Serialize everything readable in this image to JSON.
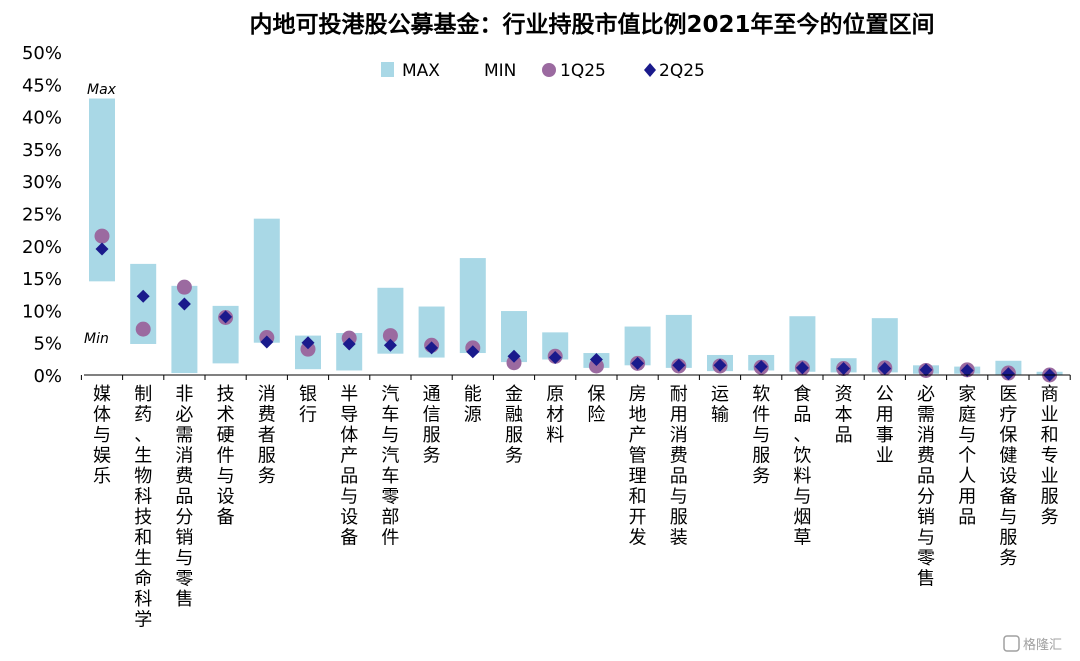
{
  "chart_data": {
    "type": "range-bar with markers",
    "title": "内地可投港股公募基金：行业持股市值比例2021年至今的位置区间",
    "legend": {
      "max": "MAX",
      "min": "MIN",
      "q1": "1Q25",
      "q2": "2Q25"
    },
    "annotations": {
      "max_label": "Max",
      "min_label": "Min"
    },
    "y_ticks": [
      "50%",
      "45%",
      "40%",
      "35%",
      "30%",
      "25%",
      "20%",
      "15%",
      "10%",
      "5%",
      "0%"
    ],
    "ylim": [
      0,
      50
    ],
    "categories": [
      "媒体与娱乐",
      "制药、生物科技和生命科学",
      "非必需消费品分销与零售",
      "技术硬件与设备",
      "消费者服务",
      "银行",
      "半导体产品与设备",
      "汽车与汽车零部件",
      "通信服务",
      "能源",
      "金融服务",
      "原材料",
      "保险",
      "房地产管理和开发",
      "耐用消费品与服装",
      "运输",
      "软件与服务",
      "食品、饮料与烟草",
      "资本品",
      "公用事业",
      "必需消费品分销与零售",
      "家庭与个人用品",
      "医疗保健设备与服务",
      "商业和专业服务"
    ],
    "series": [
      {
        "name": "MAX",
        "values": [
          42.8,
          17.2,
          13.8,
          10.7,
          24.2,
          6.1,
          6.5,
          13.5,
          10.6,
          18.1,
          9.9,
          6.6,
          3.4,
          7.5,
          9.3,
          3.1,
          3.1,
          9.1,
          2.6,
          8.8,
          1.5,
          1.3,
          2.2,
          0.5
        ]
      },
      {
        "name": "MIN",
        "values": [
          14.5,
          4.8,
          0.3,
          1.8,
          5.0,
          0.9,
          0.7,
          3.3,
          2.7,
          3.4,
          2.0,
          2.4,
          1.1,
          1.5,
          1.1,
          0.6,
          0.7,
          0.5,
          0.4,
          0.4,
          0.2,
          0.2,
          0.1,
          0.0
        ]
      },
      {
        "name": "1Q25",
        "values": [
          21.5,
          7.1,
          13.6,
          8.9,
          5.8,
          4.0,
          5.7,
          6.1,
          4.6,
          4.2,
          1.9,
          2.9,
          1.4,
          1.8,
          1.4,
          1.4,
          1.2,
          1.1,
          1.0,
          1.1,
          0.7,
          0.8,
          0.3,
          0.0
        ]
      },
      {
        "name": "2Q25",
        "values": [
          19.5,
          12.2,
          11.0,
          9.0,
          5.1,
          5.0,
          4.8,
          4.6,
          4.2,
          3.6,
          2.9,
          2.7,
          2.4,
          1.8,
          1.5,
          1.5,
          1.3,
          1.1,
          1.0,
          1.0,
          0.8,
          0.7,
          0.2,
          0.0
        ]
      }
    ],
    "colors": {
      "range": "#a9d8e6",
      "q1": "#9b6aa0",
      "q2": "#1a1a8c"
    },
    "grid": false,
    "legend_position": "top-center"
  },
  "watermark": "格隆汇"
}
